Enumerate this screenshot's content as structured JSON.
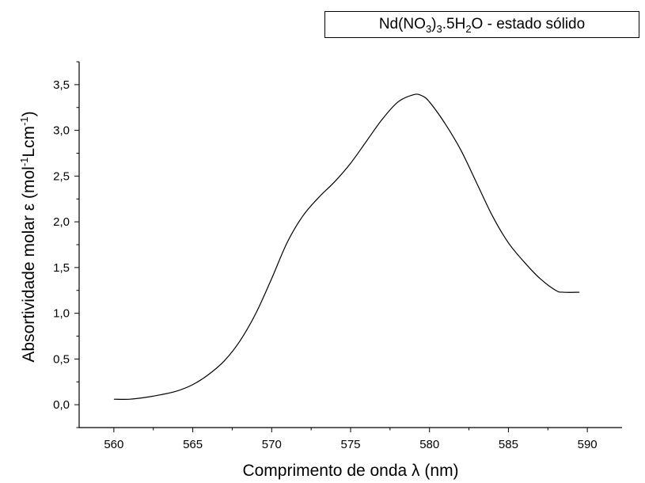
{
  "chart_data": {
    "type": "line",
    "legend": {
      "parts": [
        {
          "text": "Nd(NO",
          "sub": false
        },
        {
          "text": "3",
          "sub": true
        },
        {
          "text": ")",
          "sub": false
        },
        {
          "text": "3",
          "sub": true
        },
        {
          "text": ".5H",
          "sub": false
        },
        {
          "text": "2",
          "sub": true
        },
        {
          "text": "O - estado sólido",
          "sub": false
        }
      ],
      "placement": "top-right"
    },
    "xlabel": "Comprimento de onda λ (nm)",
    "ylabel": {
      "parts": [
        {
          "text": "Absortividade molar ε (mol",
          "sup": false
        },
        {
          "text": "-1",
          "sup": true
        },
        {
          "text": "Lcm",
          "sup": false
        },
        {
          "text": "-1",
          "sup": true
        },
        {
          "text": ")",
          "sup": false
        }
      ]
    },
    "xlim": [
      557.8,
      592.2
    ],
    "ylim": [
      -0.25,
      3.75
    ],
    "xticks": [
      560,
      565,
      570,
      575,
      580,
      585,
      590
    ],
    "xtick_labels": [
      "560",
      "565",
      "570",
      "575",
      "580",
      "585",
      "590"
    ],
    "yticks": [
      0.0,
      0.5,
      1.0,
      1.5,
      2.0,
      2.5,
      3.0,
      3.5
    ],
    "ytick_labels": [
      "0,0",
      "0,5",
      "1,0",
      "1,5",
      "2,0",
      "2,5",
      "3,0",
      "3,5"
    ],
    "grid": false,
    "series": [
      {
        "color": "#000000",
        "x": [
          560,
          561,
          562,
          563,
          564,
          565,
          566,
          567,
          568,
          569,
          570,
          571,
          572,
          573,
          574,
          575,
          576,
          577,
          578,
          579,
          579.5,
          580,
          581,
          582,
          583,
          584,
          585,
          586,
          587,
          588,
          588.5,
          589.5
        ],
        "y": [
          0.06,
          0.06,
          0.08,
          0.11,
          0.15,
          0.22,
          0.33,
          0.48,
          0.7,
          1.0,
          1.38,
          1.78,
          2.07,
          2.27,
          2.44,
          2.64,
          2.88,
          3.12,
          3.31,
          3.39,
          3.38,
          3.31,
          3.07,
          2.78,
          2.42,
          2.06,
          1.77,
          1.56,
          1.38,
          1.25,
          1.23,
          1.23
        ]
      }
    ]
  }
}
